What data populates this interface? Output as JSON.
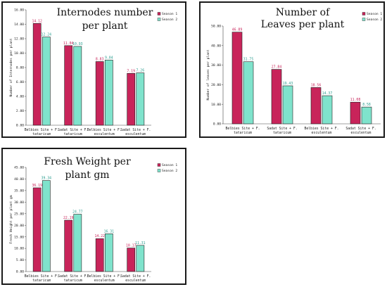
{
  "chart_data": [
    {
      "type": "bar",
      "title_lines": [
        "Internodes number",
        "per plant"
      ],
      "ylabel": "Number of Internodes per plant",
      "ylim": [
        0,
        16
      ],
      "yticks": [
        "0.00",
        "2.00",
        "4.00",
        "6.00",
        "8.00",
        "10.00",
        "12.00",
        "14.00",
        "16.00"
      ],
      "categories": [
        [
          "Belbies Site + F.",
          "tataricum"
        ],
        [
          "Sadat Site + F.",
          "tataricum"
        ],
        [
          "Belbies Site + F.",
          "esculentum"
        ],
        [
          "Sadat Site + F.",
          "esculentum"
        ]
      ],
      "series": [
        {
          "name": "Season 1",
          "values": [
            14.12,
            11.04,
            8.83,
            7.19
          ],
          "labels": [
            "14.12",
            "11.04",
            "8.83",
            "7.19"
          ]
        },
        {
          "name": "Season 2",
          "values": [
            12.24,
            10.93,
            9.04,
            7.26
          ],
          "labels": [
            "12.24",
            "10.93",
            "9.04",
            "7.26"
          ]
        }
      ]
    },
    {
      "type": "bar",
      "title_lines": [
        "Number of",
        "Leaves per plant"
      ],
      "ylabel": "Number of leaves per plant",
      "ylim": [
        0,
        50
      ],
      "yticks": [
        "0.00",
        "10.00",
        "20.00",
        "30.00",
        "40.00",
        "50.00"
      ],
      "categories": [
        [
          "Belbies Site + F.",
          "tataricum"
        ],
        [
          "Sadat Site + F.",
          "tataricum"
        ],
        [
          "Belbies Site + F.",
          "esculentum"
        ],
        [
          "Sadat Site + F.",
          "esculentum"
        ]
      ],
      "series": [
        {
          "name": "Season 1",
          "values": [
            46.89,
            27.84,
            18.56,
            11.08
          ],
          "labels": [
            "46.89",
            "27.84",
            "18.56",
            "11.08"
          ]
        },
        {
          "name": "Season 2",
          "values": [
            31.75,
            19.43,
            14.37,
            8.58
          ],
          "labels": [
            "31.75",
            "19.43",
            "14.37",
            "8.58"
          ]
        }
      ]
    },
    {
      "type": "bar",
      "title_lines": [
        "Fresh Weight per",
        "plant gm"
      ],
      "ylabel": "Fresh Weight per plant gm",
      "ylim": [
        0,
        45
      ],
      "yticks": [
        "0.00",
        "5.00",
        "10.00",
        "15.00",
        "20.00",
        "25.00",
        "30.00",
        "35.00",
        "40.00",
        "45.00"
      ],
      "categories": [
        [
          "Belbies Site + F.",
          "tataricum"
        ],
        [
          "Sadat Site + F.",
          "tataricum"
        ],
        [
          "Belbies Site + F.",
          "esculentum"
        ],
        [
          "Sadat Site + F.",
          "esculentum"
        ]
      ],
      "series": [
        {
          "name": "Season 1",
          "values": [
            36.19,
            22.19,
            14.22,
            10.17
          ],
          "labels": [
            "36.19",
            "22.19",
            "14.22",
            "10.17"
          ]
        },
        {
          "name": "Season 2",
          "values": [
            39.34,
            24.77,
            16.31,
            11.31
          ],
          "labels": [
            "39.34",
            "24.77",
            "16.31",
            "11.31"
          ]
        }
      ]
    }
  ],
  "colors": {
    "season1_fill": "#c8245a",
    "season2_fill": "#7fe3cc",
    "label1": "#c8245a",
    "label2": "#2a9d8f",
    "axis": "#444444",
    "edge": "#222222"
  }
}
